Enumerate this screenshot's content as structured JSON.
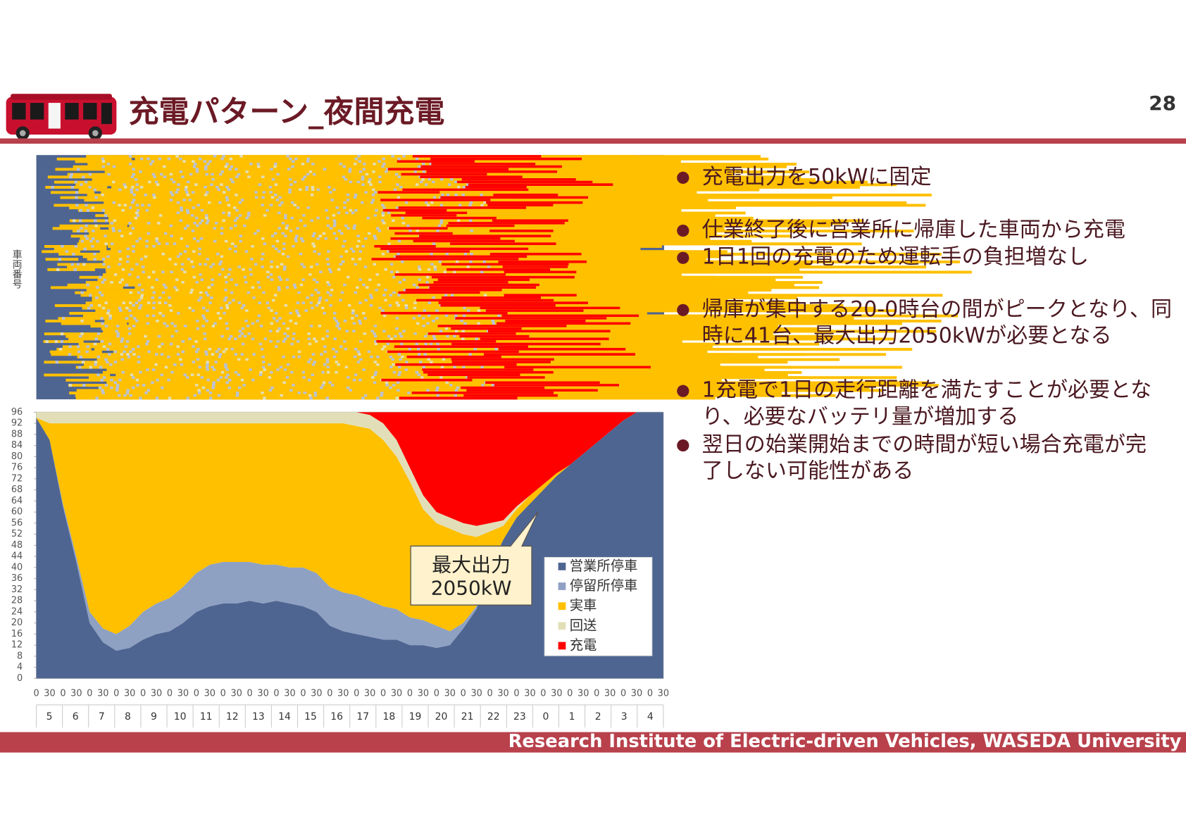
{
  "header": {
    "title": "充電パターン_夜間充電",
    "page": 28
  },
  "bullets": [
    [
      "充電出力を50kWに固定"
    ],
    [
      "仕業終了後に営業所に帰庫した車両から充電"
    ],
    [
      "1日1回の充電のため運転手の負担増なし"
    ],
    [
      "帰庫が集中する20-0時台の間がピークとなり、同",
      "時に41台、最大出力2050kWが必要となる"
    ],
    [
      "1充電で1日の走行距離を満たすことが必要とな",
      "り、必要なバッテリ量が増加する"
    ],
    [
      "翌日の始業開始までの時間が短い場合充電が完",
      "了しない可能性がある"
    ]
  ],
  "heatmap": {
    "ylabel": "車両番号"
  },
  "chart_data": {
    "type": "stacked_area",
    "categories": [
      "0",
      "30",
      "0",
      "30",
      "0",
      "30",
      "0",
      "30",
      "0",
      "30",
      "0",
      "30",
      "0",
      "30",
      "0",
      "30",
      "0",
      "30",
      "0",
      "30",
      "0",
      "30",
      "0",
      "30",
      "0",
      "30",
      "0",
      "30",
      "0",
      "30",
      "0",
      "30",
      "0",
      "30",
      "0",
      "30",
      "0",
      "30",
      "0",
      "30",
      "0",
      "30",
      "0",
      "30",
      "0",
      "30",
      "0",
      "30"
    ],
    "hours": [
      5,
      6,
      7,
      8,
      9,
      10,
      11,
      12,
      13,
      14,
      15,
      16,
      17,
      18,
      19,
      20,
      21,
      22,
      23,
      0,
      1,
      2,
      3,
      4
    ],
    "ylim": [
      0,
      96
    ],
    "yticks": [
      0,
      4,
      8,
      12,
      16,
      20,
      24,
      28,
      32,
      36,
      40,
      44,
      48,
      52,
      56,
      60,
      64,
      68,
      72,
      76,
      80,
      84,
      88,
      92,
      96
    ],
    "series": [
      {
        "name": "営業所停車",
        "color": "#4f6591",
        "values": [
          94,
          86,
          62,
          42,
          20,
          13,
          10,
          11,
          14,
          16,
          17,
          20,
          24,
          26,
          27,
          27,
          28,
          27,
          28,
          27,
          26,
          24,
          19,
          17,
          16,
          15,
          14,
          14,
          12,
          12,
          11,
          12,
          18,
          25,
          40,
          50,
          58,
          63,
          68,
          73,
          77,
          81,
          85,
          89,
          93,
          96,
          96,
          96
        ]
      },
      {
        "name": "停留所停車",
        "color": "#8fa1c3",
        "values": [
          0,
          0,
          1,
          2,
          4,
          5,
          6,
          8,
          10,
          11,
          12,
          13,
          14,
          15,
          15,
          15,
          14,
          14,
          13,
          13,
          14,
          14,
          14,
          14,
          14,
          13,
          12,
          11,
          10,
          9,
          8,
          5,
          2,
          1,
          0,
          0,
          0,
          0,
          0,
          0,
          0,
          0,
          0,
          0,
          0,
          0,
          0,
          0
        ]
      },
      {
        "name": "実車",
        "color": "#ffc000",
        "values": [
          0,
          6,
          29,
          48,
          68,
          74,
          76,
          73,
          68,
          65,
          63,
          59,
          54,
          51,
          50,
          50,
          50,
          51,
          51,
          52,
          52,
          54,
          59,
          61,
          61,
          62,
          60,
          55,
          49,
          40,
          37,
          37,
          32,
          25,
          13,
          5,
          3,
          3,
          2,
          1,
          0,
          0,
          0,
          0,
          0,
          0,
          0,
          0
        ]
      },
      {
        "name": "回送",
        "color": "#e2dfb8",
        "values": [
          2,
          4,
          4,
          4,
          4,
          4,
          4,
          4,
          4,
          4,
          4,
          4,
          4,
          4,
          4,
          4,
          4,
          4,
          4,
          4,
          4,
          4,
          4,
          4,
          5,
          5,
          6,
          6,
          5,
          5,
          4,
          4,
          4,
          4,
          3,
          2,
          1,
          0,
          0,
          0,
          0,
          0,
          0,
          0,
          0,
          0,
          0,
          0
        ]
      },
      {
        "name": "充電",
        "color": "#ff0000",
        "values": [
          0,
          0,
          0,
          0,
          0,
          0,
          0,
          0,
          0,
          0,
          0,
          0,
          0,
          0,
          0,
          0,
          0,
          0,
          0,
          0,
          0,
          0,
          0,
          0,
          0,
          1,
          4,
          10,
          20,
          30,
          36,
          38,
          40,
          41,
          40,
          39,
          34,
          30,
          26,
          22,
          19,
          15,
          11,
          7,
          3,
          0,
          0,
          0
        ]
      }
    ],
    "annotation": [
      "最大出力",
      "2050kW"
    ]
  },
  "footer": "Research Institute of Electric-driven Vehicles, WASEDA University"
}
